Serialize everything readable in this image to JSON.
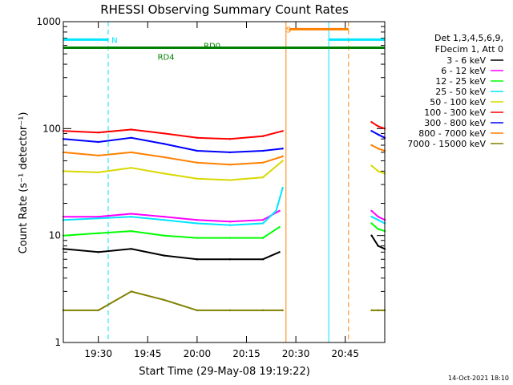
{
  "chart_data": {
    "type": "line",
    "title": "RHESSI Observing Summary Count Rates",
    "xlabel": "Start Time (29-May-08 19:19:22)",
    "ylabel": "Count Rate (s⁻¹ detector⁻¹)",
    "yscale": "log",
    "ylim": [
      1,
      1000
    ],
    "xlim": [
      "19:19:22",
      "20:57:00"
    ],
    "x_ticks": [
      "19:30",
      "19:45",
      "20:00",
      "20:15",
      "20:30",
      "20:45"
    ],
    "y_ticks": [
      "1",
      "10",
      "100",
      "1000"
    ],
    "legend_header": [
      "Det 1,3,4,5,6,9,",
      "FDecim 1, Att 0"
    ],
    "legend_position": "right",
    "series": [
      {
        "name": "3 - 6 keV",
        "color": "#000000",
        "x": [
          "19:19:22",
          "19:30",
          "19:40",
          "19:50",
          "20:00",
          "20:10",
          "20:20",
          "20:25"
        ],
        "y": [
          7.5,
          7,
          7.5,
          6.5,
          6,
          6,
          6,
          7
        ],
        "x2": [
          "20:53",
          "20:55",
          "20:57"
        ],
        "y2": [
          10,
          8,
          7.5
        ]
      },
      {
        "name": "6 - 12 keV",
        "color": "#ff00ff",
        "x": [
          "19:19:22",
          "19:30",
          "19:40",
          "19:50",
          "20:00",
          "20:10",
          "20:20",
          "20:25"
        ],
        "y": [
          15,
          15,
          16,
          15,
          14,
          13.5,
          14,
          17
        ],
        "x2": [
          "20:53",
          "20:55",
          "20:57"
        ],
        "y2": [
          17,
          15,
          14
        ]
      },
      {
        "name": "12 - 25 keV",
        "color": "#00ff00",
        "x": [
          "19:19:22",
          "19:30",
          "19:40",
          "19:50",
          "20:00",
          "20:10",
          "20:20",
          "20:25"
        ],
        "y": [
          10,
          10.5,
          11,
          10,
          9.5,
          9.5,
          9.5,
          12
        ],
        "x2": [
          "20:53",
          "20:55",
          "20:57"
        ],
        "y2": [
          13,
          11.5,
          11
        ]
      },
      {
        "name": "25 - 50 keV",
        "color": "#00e5ff",
        "x": [
          "19:19:22",
          "19:30",
          "19:40",
          "19:50",
          "20:00",
          "20:10",
          "20:20",
          "20:24",
          "20:26"
        ],
        "y": [
          14,
          14.5,
          15,
          14,
          13,
          12.5,
          13,
          17,
          28
        ],
        "x2": [
          "20:53",
          "20:55",
          "20:57"
        ],
        "y2": [
          15,
          14,
          13
        ]
      },
      {
        "name": "50 - 100 keV",
        "color": "#d8d800",
        "x": [
          "19:19:22",
          "19:30",
          "19:40",
          "19:50",
          "20:00",
          "20:10",
          "20:20",
          "20:26"
        ],
        "y": [
          40,
          39,
          43,
          38,
          34,
          33,
          35,
          50
        ],
        "x2": [
          "20:53",
          "20:55",
          "20:57"
        ],
        "y2": [
          45,
          40,
          38
        ]
      },
      {
        "name": "100 - 300 keV",
        "color": "#ff0000",
        "x": [
          "19:19:22",
          "19:30",
          "19:40",
          "19:50",
          "20:00",
          "20:10",
          "20:20",
          "20:26"
        ],
        "y": [
          95,
          92,
          98,
          90,
          82,
          80,
          85,
          95
        ],
        "x2": [
          "20:53",
          "20:55",
          "20:57"
        ],
        "y2": [
          115,
          105,
          100
        ]
      },
      {
        "name": "300 - 800 keV",
        "color": "#0000ff",
        "x": [
          "19:19:22",
          "19:30",
          "19:40",
          "19:50",
          "20:00",
          "20:10",
          "20:20",
          "20:26"
        ],
        "y": [
          80,
          75,
          82,
          72,
          62,
          60,
          62,
          65
        ],
        "x2": [
          "20:53",
          "20:55",
          "20:57"
        ],
        "y2": [
          95,
          88,
          82
        ]
      },
      {
        "name": "800 - 7000 keV",
        "color": "#ff8000",
        "x": [
          "19:19:22",
          "19:30",
          "19:40",
          "19:50",
          "20:00",
          "20:10",
          "20:20",
          "20:26"
        ],
        "y": [
          60,
          56,
          60,
          54,
          48,
          46,
          48,
          55
        ],
        "x2": [
          "20:53",
          "20:55",
          "20:57"
        ],
        "y2": [
          70,
          65,
          62
        ]
      },
      {
        "name": "7000 - 15000 keV",
        "color": "#808000",
        "x": [
          "19:19:22",
          "19:30",
          "19:40",
          "19:50",
          "20:00",
          "20:10",
          "20:20",
          "20:26"
        ],
        "y": [
          2,
          2,
          3,
          2.5,
          2,
          2,
          2,
          2
        ],
        "x2": [
          "20:53",
          "20:55",
          "20:57"
        ],
        "y2": [
          2,
          2,
          2
        ]
      }
    ],
    "bars": [
      {
        "label": "",
        "color": "#00e5ff",
        "y": 680,
        "segments": [
          [
            "19:19:22",
            "19:33"
          ],
          [
            "20:40",
            "20:57"
          ]
        ]
      },
      {
        "label": "N",
        "color": "#00e5ff",
        "y": 680,
        "x": "19:34"
      },
      {
        "label": "S",
        "color": "#ff8000",
        "y": 850,
        "x": "20:27",
        "segments": [
          [
            "20:28",
            "20:46"
          ]
        ]
      },
      {
        "label": "",
        "color": "#008000",
        "y": 570,
        "segments": [
          [
            "19:19:22",
            "20:57"
          ]
        ]
      },
      {
        "label": "RD4",
        "color": "#008000",
        "y": 470,
        "x": "19:48"
      },
      {
        "label": "RD0",
        "color": "#008000",
        "y": 600,
        "x": "20:02"
      }
    ],
    "vlines": [
      {
        "x": "19:19:22",
        "color": "#00e5ff",
        "style": "solid"
      },
      {
        "x": "19:33",
        "color": "#00e5ff",
        "style": "dashed"
      },
      {
        "x": "20:27",
        "color": "#ff8000",
        "style": "solid"
      },
      {
        "x": "20:40",
        "color": "#00e5ff",
        "style": "solid"
      },
      {
        "x": "20:46",
        "color": "#ff8000",
        "style": "dashed"
      },
      {
        "x": "20:57",
        "color": "#00e5ff",
        "style": "dashed"
      }
    ]
  },
  "footer": {
    "timestamp": "14-Oct-2021 18:10"
  }
}
